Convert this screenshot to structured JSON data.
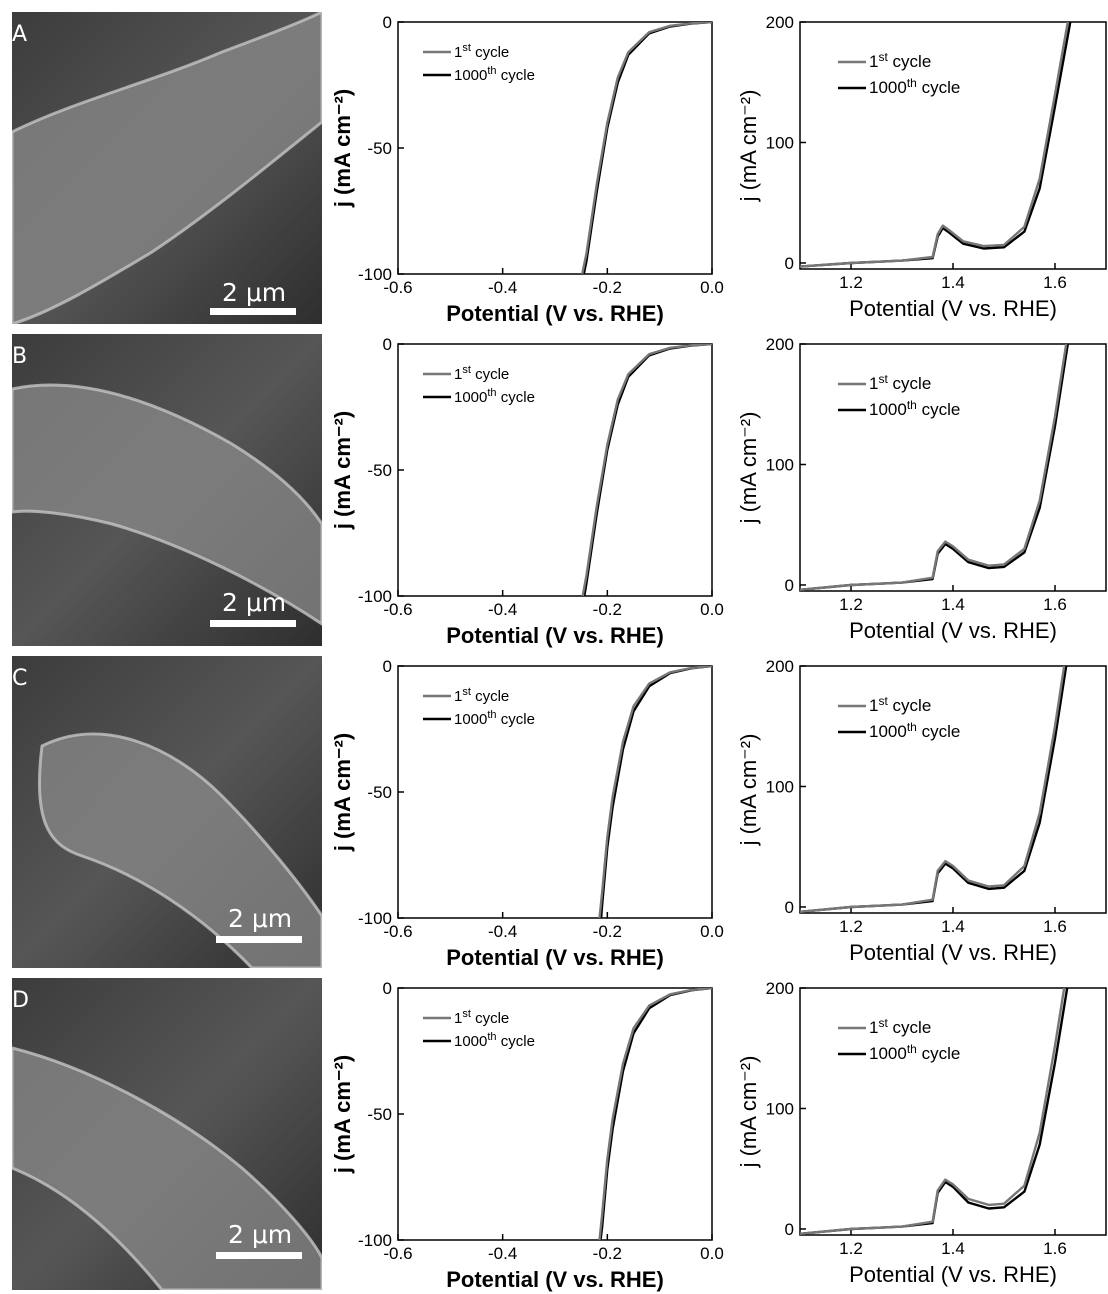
{
  "panels": [
    {
      "letter": "A",
      "scale_label": "2 μm"
    },
    {
      "letter": "B",
      "scale_label": "2 μm"
    },
    {
      "letter": "C",
      "scale_label": "2 μm"
    },
    {
      "letter": "D",
      "scale_label": "2 μm"
    }
  ],
  "colors": {
    "first_cycle": "#777777",
    "thousandth_cycle": "#000000"
  },
  "chart_data": [
    {
      "type": "line",
      "panel": "HER",
      "xlabel": "Potential (V vs. RHE)",
      "ylabel": "j (mA cm⁻²)",
      "xlim": [
        -0.6,
        0.0
      ],
      "ylim": [
        -100,
        0
      ],
      "xticks": [
        -0.6,
        -0.4,
        -0.2,
        0.0
      ],
      "xtick_labels": [
        "-0.6",
        "-0.4",
        "-0.2",
        "0.0"
      ],
      "yticks": [
        0,
        -50,
        -100
      ],
      "ytick_labels": [
        "0",
        "-50",
        "-100"
      ],
      "legend": [
        "1st cycle",
        "1000th cycle"
      ],
      "series": [
        {
          "name": "1st cycle",
          "x": [
            0.0,
            -0.04,
            -0.08,
            -0.12,
            -0.16,
            -0.18,
            -0.2,
            -0.22,
            -0.24,
            -0.248
          ],
          "y": [
            0,
            -0.5,
            -1.5,
            -4,
            -12,
            -22,
            -40,
            -64,
            -92,
            -100
          ]
        },
        {
          "name": "1000th cycle",
          "x": [
            0.0,
            -0.04,
            -0.08,
            -0.12,
            -0.16,
            -0.18,
            -0.2,
            -0.22,
            -0.24,
            -0.245
          ],
          "y": [
            0,
            -0.6,
            -1.8,
            -4.5,
            -13,
            -24,
            -42,
            -67,
            -95,
            -100
          ]
        }
      ]
    },
    {
      "type": "line",
      "panel": "OER",
      "xlabel": "Potential (V vs. RHE)",
      "ylabel": "j (mA cm⁻²)",
      "xlim": [
        1.1,
        1.7
      ],
      "ylim": [
        -5,
        200
      ],
      "xticks": [
        1.2,
        1.4,
        1.6
      ],
      "xtick_labels": [
        "1.2",
        "1.4",
        "1.6"
      ],
      "yticks": [
        0,
        100,
        200
      ],
      "ytick_labels": [
        "0",
        "100",
        "200"
      ],
      "legend": [
        "1st cycle",
        "1000th cycle"
      ],
      "series": [
        {
          "name": "1st cycle",
          "x": [
            1.1,
            1.2,
            1.3,
            1.36,
            1.37,
            1.38,
            1.39,
            1.42,
            1.46,
            1.5,
            1.54,
            1.57,
            1.6,
            1.625
          ],
          "y": [
            -3,
            0,
            2,
            5,
            24,
            31,
            28,
            18,
            14,
            15,
            30,
            70,
            140,
            200
          ]
        },
        {
          "name": "1000th cycle",
          "x": [
            1.1,
            1.2,
            1.3,
            1.36,
            1.37,
            1.38,
            1.39,
            1.42,
            1.46,
            1.5,
            1.54,
            1.57,
            1.6,
            1.63
          ],
          "y": [
            -3,
            0,
            2,
            4,
            22,
            29,
            26,
            16,
            12,
            13,
            26,
            62,
            130,
            200
          ]
        }
      ]
    },
    {
      "type": "line",
      "panel": "HER",
      "xlabel": "Potential (V vs. RHE)",
      "ylabel": "j (mA cm⁻²)",
      "xlim": [
        -0.6,
        0.0
      ],
      "ylim": [
        -100,
        0
      ],
      "xticks": [
        -0.6,
        -0.4,
        -0.2,
        0.0
      ],
      "xtick_labels": [
        "-0.6",
        "-0.4",
        "-0.2",
        "0.0"
      ],
      "yticks": [
        0,
        -50,
        -100
      ],
      "ytick_labels": [
        "0",
        "-50",
        "-100"
      ],
      "legend": [
        "1st cycle",
        "1000th cycle"
      ],
      "series": [
        {
          "name": "1st cycle",
          "x": [
            0.0,
            -0.04,
            -0.08,
            -0.12,
            -0.16,
            -0.18,
            -0.2,
            -0.22,
            -0.24,
            -0.247
          ],
          "y": [
            0,
            -0.5,
            -1.5,
            -4,
            -12,
            -22,
            -40,
            -64,
            -92,
            -100
          ]
        },
        {
          "name": "1000th cycle",
          "x": [
            0.0,
            -0.04,
            -0.08,
            -0.12,
            -0.16,
            -0.18,
            -0.2,
            -0.22,
            -0.24,
            -0.244
          ],
          "y": [
            0,
            -0.6,
            -1.8,
            -4.5,
            -13,
            -24,
            -42,
            -67,
            -95,
            -100
          ]
        }
      ]
    },
    {
      "type": "line",
      "panel": "OER",
      "xlabel": "Potential (V vs. RHE)",
      "ylabel": "j (mA cm⁻²)",
      "xlim": [
        1.1,
        1.7
      ],
      "ylim": [
        -5,
        200
      ],
      "xticks": [
        1.2,
        1.4,
        1.6
      ],
      "xtick_labels": [
        "1.2",
        "1.4",
        "1.6"
      ],
      "yticks": [
        0,
        100,
        200
      ],
      "ytick_labels": [
        "0",
        "100",
        "200"
      ],
      "legend": [
        "1st cycle",
        "1000th cycle"
      ],
      "series": [
        {
          "name": "1st cycle",
          "x": [
            1.1,
            1.2,
            1.3,
            1.36,
            1.37,
            1.385,
            1.4,
            1.43,
            1.47,
            1.5,
            1.54,
            1.57,
            1.6,
            1.622
          ],
          "y": [
            -4,
            0,
            2,
            6,
            28,
            36,
            32,
            21,
            16,
            17,
            30,
            70,
            140,
            200
          ]
        },
        {
          "name": "1000th cycle",
          "x": [
            1.1,
            1.2,
            1.3,
            1.36,
            1.37,
            1.385,
            1.4,
            1.43,
            1.47,
            1.5,
            1.54,
            1.57,
            1.6,
            1.625
          ],
          "y": [
            -4,
            0,
            2,
            5,
            26,
            34,
            30,
            19,
            14,
            15,
            27,
            64,
            132,
            200
          ]
        }
      ]
    },
    {
      "type": "line",
      "panel": "HER",
      "xlabel": "Potential (V vs. RHE)",
      "ylabel": "j (mA cm⁻²)",
      "xlim": [
        -0.6,
        0.0
      ],
      "ylim": [
        -100,
        0
      ],
      "xticks": [
        -0.6,
        -0.4,
        -0.2,
        0.0
      ],
      "xtick_labels": [
        "-0.6",
        "-0.4",
        "-0.2",
        "0.0"
      ],
      "yticks": [
        0,
        -50,
        -100
      ],
      "ytick_labels": [
        "0",
        "-50",
        "-100"
      ],
      "legend": [
        "1st cycle",
        "1000th cycle"
      ],
      "series": [
        {
          "name": "1st cycle",
          "x": [
            0.0,
            -0.04,
            -0.08,
            -0.12,
            -0.15,
            -0.17,
            -0.19,
            -0.2,
            -0.21,
            -0.215
          ],
          "y": [
            0,
            -0.8,
            -2.5,
            -7,
            -16,
            -30,
            -52,
            -68,
            -90,
            -100
          ]
        },
        {
          "name": "1000th cycle",
          "x": [
            0.0,
            -0.04,
            -0.08,
            -0.12,
            -0.15,
            -0.17,
            -0.19,
            -0.2,
            -0.21,
            -0.212
          ],
          "y": [
            0,
            -0.9,
            -2.8,
            -8,
            -18,
            -33,
            -56,
            -72,
            -95,
            -100
          ]
        }
      ]
    },
    {
      "type": "line",
      "panel": "OER",
      "xlabel": "Potential (V vs. RHE)",
      "ylabel": "j (mA cm⁻²)",
      "xlim": [
        1.1,
        1.7
      ],
      "ylim": [
        -5,
        200
      ],
      "xticks": [
        1.2,
        1.4,
        1.6
      ],
      "xtick_labels": [
        "1.2",
        "1.4",
        "1.6"
      ],
      "yticks": [
        0,
        100,
        200
      ],
      "ytick_labels": [
        "0",
        "100",
        "200"
      ],
      "legend": [
        "1st cycle",
        "1000th cycle"
      ],
      "series": [
        {
          "name": "1st cycle",
          "x": [
            1.1,
            1.2,
            1.3,
            1.36,
            1.37,
            1.385,
            1.4,
            1.43,
            1.47,
            1.5,
            1.54,
            1.57,
            1.6,
            1.618
          ],
          "y": [
            -4,
            0,
            2,
            6,
            30,
            38,
            34,
            22,
            17,
            18,
            34,
            78,
            150,
            200
          ]
        },
        {
          "name": "1000th cycle",
          "x": [
            1.1,
            1.2,
            1.3,
            1.36,
            1.37,
            1.385,
            1.4,
            1.43,
            1.47,
            1.5,
            1.54,
            1.57,
            1.6,
            1.622
          ],
          "y": [
            -4,
            0,
            2,
            5,
            28,
            36,
            32,
            20,
            15,
            16,
            30,
            70,
            140,
            200
          ]
        }
      ]
    },
    {
      "type": "line",
      "panel": "HER",
      "xlabel": "Potential (V vs. RHE)",
      "ylabel": "j (mA cm⁻²)",
      "xlim": [
        -0.6,
        0.0
      ],
      "ylim": [
        -100,
        0
      ],
      "xticks": [
        -0.6,
        -0.4,
        -0.2,
        0.0
      ],
      "xtick_labels": [
        "-0.6",
        "-0.4",
        "-0.2",
        "0.0"
      ],
      "yticks": [
        0,
        -50,
        -100
      ],
      "ytick_labels": [
        "0",
        "-50",
        "-100"
      ],
      "legend": [
        "1st cycle",
        "1000th cycle"
      ],
      "series": [
        {
          "name": "1st cycle",
          "x": [
            0.0,
            -0.04,
            -0.08,
            -0.12,
            -0.15,
            -0.17,
            -0.19,
            -0.2,
            -0.21,
            -0.215
          ],
          "y": [
            0,
            -0.8,
            -2.5,
            -7,
            -16,
            -30,
            -52,
            -68,
            -90,
            -100
          ]
        },
        {
          "name": "1000th cycle",
          "x": [
            0.0,
            -0.04,
            -0.08,
            -0.12,
            -0.15,
            -0.17,
            -0.19,
            -0.2,
            -0.21,
            -0.213
          ],
          "y": [
            0,
            -0.9,
            -2.8,
            -8,
            -18,
            -33,
            -56,
            -72,
            -95,
            -100
          ]
        }
      ]
    },
    {
      "type": "line",
      "panel": "OER",
      "xlabel": "Potential (V vs. RHE)",
      "ylabel": "j (mA cm⁻²)",
      "xlim": [
        1.1,
        1.7
      ],
      "ylim": [
        -5,
        200
      ],
      "xticks": [
        1.2,
        1.4,
        1.6
      ],
      "xtick_labels": [
        "1.2",
        "1.4",
        "1.6"
      ],
      "yticks": [
        0,
        100,
        200
      ],
      "ytick_labels": [
        "0",
        "100",
        "200"
      ],
      "legend": [
        "1st cycle",
        "1000th cycle"
      ],
      "series": [
        {
          "name": "1st cycle",
          "x": [
            1.1,
            1.2,
            1.3,
            1.36,
            1.37,
            1.385,
            1.4,
            1.43,
            1.47,
            1.5,
            1.54,
            1.57,
            1.6,
            1.618
          ],
          "y": [
            -4,
            0,
            2,
            6,
            32,
            41,
            37,
            25,
            20,
            21,
            36,
            80,
            152,
            200
          ]
        },
        {
          "name": "1000th cycle",
          "x": [
            1.1,
            1.2,
            1.3,
            1.36,
            1.37,
            1.385,
            1.4,
            1.43,
            1.47,
            1.5,
            1.54,
            1.57,
            1.6,
            1.624
          ],
          "y": [
            -4,
            0,
            2,
            5,
            30,
            39,
            35,
            22,
            17,
            18,
            31,
            70,
            138,
            200
          ]
        }
      ]
    }
  ]
}
